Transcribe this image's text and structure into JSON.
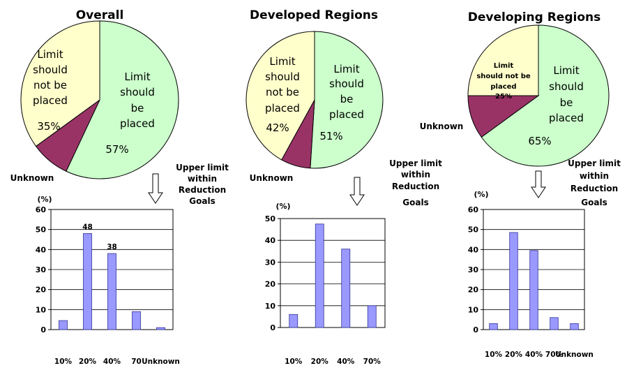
{
  "colors": {
    "placed": "#ccffcc",
    "not_placed": "#ffffcc",
    "unknown": "#993366",
    "bar": "#9999ff",
    "bar_stroke": "#333399",
    "grid": "#000000"
  },
  "chart_data": [
    {
      "type": "pie",
      "title": "Overall",
      "slices": [
        {
          "label": "Limit should be placed",
          "value": 57,
          "value_label": "57%",
          "color": "#ccffcc"
        },
        {
          "label": "Unknown",
          "value": 8,
          "value_label": "",
          "color": "#993366"
        },
        {
          "label": "Limit should not be placed",
          "value": 35,
          "value_label": "35%",
          "color": "#ffffcc"
        }
      ]
    },
    {
      "type": "pie",
      "title": "Developed Regions",
      "slices": [
        {
          "label": "Limit should be placed",
          "value": 51,
          "value_label": "51%",
          "color": "#ccffcc"
        },
        {
          "label": "Unknown",
          "value": 7,
          "value_label": "",
          "color": "#993366"
        },
        {
          "label": "Limit should not be placed",
          "value": 42,
          "value_label": "42%",
          "color": "#ffffcc"
        }
      ]
    },
    {
      "type": "pie",
      "title": "Developing Regions",
      "slices": [
        {
          "label": "Limit should be placed",
          "value": 65,
          "value_label": "65%",
          "color": "#ccffcc"
        },
        {
          "label": "Unknown",
          "value": 10,
          "value_label": "",
          "color": "#993366"
        },
        {
          "label": "Limit should not be placed",
          "value": 25,
          "value_label": "25%",
          "color": "#ffffcc"
        }
      ]
    },
    {
      "type": "bar",
      "title": "Upper limit within Reduction Goals",
      "ylabel": "(%)",
      "categories": [
        "10%",
        "20%",
        "40%",
        "70",
        "Unknown"
      ],
      "values": [
        4.5,
        48,
        38,
        9,
        1
      ],
      "data_labels": [
        "",
        "48",
        "38",
        "",
        ""
      ],
      "ylim": [
        0,
        60
      ],
      "yticks": [
        0,
        10,
        20,
        30,
        40,
        50,
        60
      ]
    },
    {
      "type": "bar",
      "title": "Upper limit within Reduction Goals",
      "ylabel": "(%)",
      "categories": [
        "10%",
        "20%",
        "40%",
        "70%"
      ],
      "values": [
        6,
        47.5,
        36,
        10
      ],
      "data_labels": [
        "",
        "",
        "",
        ""
      ],
      "ylim": [
        0,
        50
      ],
      "yticks": [
        0,
        10,
        20,
        30,
        40,
        50
      ]
    },
    {
      "type": "bar",
      "title": "Upper limit within Reduction Goals",
      "ylabel": "(%)",
      "categories": [
        "10%",
        "20%",
        "40%",
        "70%",
        "Unknown"
      ],
      "values": [
        3,
        48.5,
        39.5,
        6,
        3
      ],
      "data_labels": [
        "",
        "",
        "",
        "",
        ""
      ],
      "ylim": [
        0,
        60
      ],
      "yticks": [
        0,
        10,
        20,
        30,
        40,
        50,
        60
      ]
    }
  ],
  "texts": {
    "pie1": {
      "placed": [
        "Limit",
        "should",
        "be",
        "placed"
      ],
      "placed_pct": "57%",
      "not": [
        "Limit",
        "should",
        "not be",
        "placed"
      ],
      "not_pct": "35%",
      "unknown": "Unknown"
    },
    "pie2": {
      "placed": [
        "Limit",
        "should",
        "be",
        "placed"
      ],
      "placed_pct": "51%",
      "not": [
        "Limit",
        "should",
        "not be",
        "placed"
      ],
      "not_pct": "42%",
      "unknown": "Unknown"
    },
    "pie3": {
      "placed": [
        "Limit",
        "should",
        "be",
        "placed"
      ],
      "placed_pct": "65%",
      "not": [
        "Limit",
        "should not be",
        "placed",
        "25%"
      ],
      "unknown": "Unknown"
    },
    "note_lines": [
      "Upper limit",
      "within",
      "Reduction",
      "Goals"
    ]
  }
}
